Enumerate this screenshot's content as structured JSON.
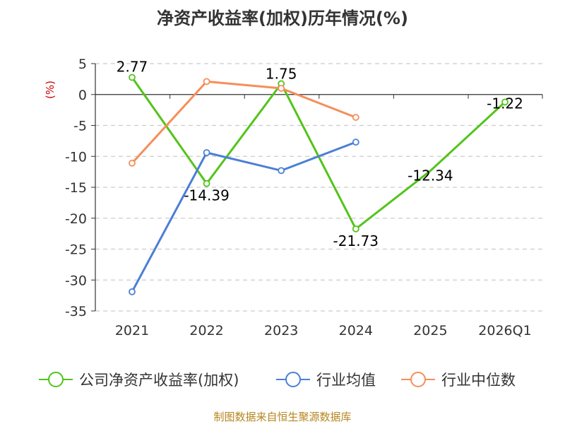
{
  "chart_data": {
    "type": "line",
    "title": "净资产收益率(加权)历年情况(%)",
    "y_unit": "(%)",
    "categories": [
      "2021",
      "2022",
      "2023",
      "2024",
      "2025",
      "2026Q1"
    ],
    "ylim": [
      -35,
      5
    ],
    "yticks": [
      5,
      0,
      -5,
      -10,
      -15,
      -20,
      -25,
      -30,
      -35
    ],
    "grid": true,
    "legend_position": "bottom",
    "series": [
      {
        "name": "公司净资产收益率(加权)",
        "color": "#52c41a",
        "values": [
          2.77,
          -14.39,
          1.75,
          -21.73,
          -12.34,
          -1.22
        ],
        "labels": [
          "2.77",
          "-14.39",
          "1.75",
          "-21.73",
          "-12.34",
          "-1.22"
        ],
        "markers": [
          true,
          true,
          true,
          true,
          false,
          true
        ]
      },
      {
        "name": "行业均值",
        "color": "#4a7fd6",
        "values": [
          -31.9,
          -9.4,
          -12.3,
          -7.7,
          null,
          null
        ],
        "markers": [
          true,
          true,
          true,
          true,
          false,
          false
        ]
      },
      {
        "name": "行业中位数",
        "color": "#f58e5a",
        "values": [
          -11.1,
          2.1,
          1.0,
          -3.7,
          null,
          null
        ],
        "markers": [
          true,
          true,
          true,
          true,
          false,
          false
        ]
      }
    ]
  },
  "source": "制图数据来自恒生聚源数据库"
}
